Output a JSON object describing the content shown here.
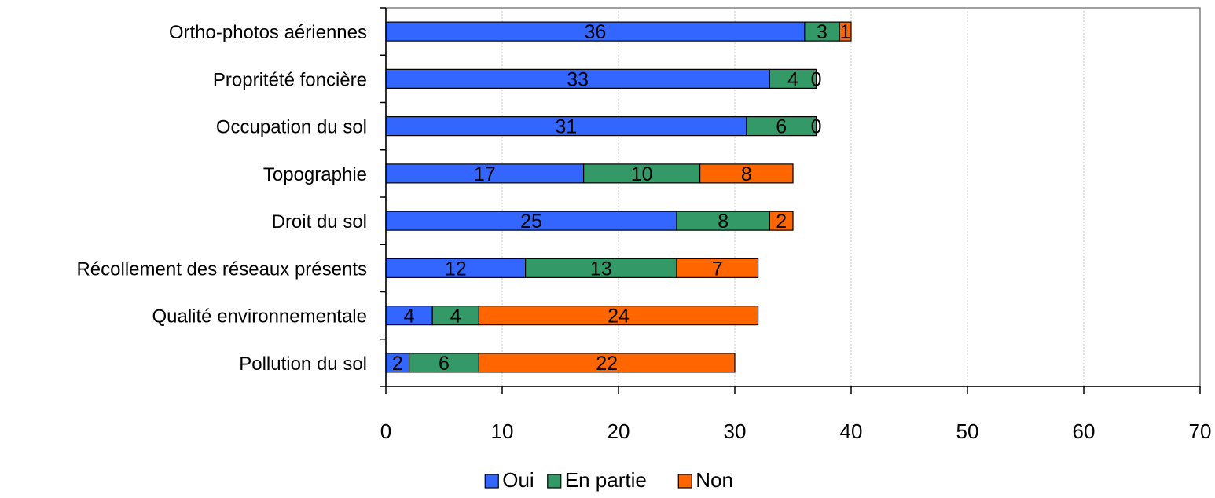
{
  "chart_data": {
    "type": "bar",
    "orientation": "horizontal",
    "stacked": true,
    "title": "",
    "xlabel": "",
    "ylabel": "",
    "xlim": [
      0,
      70
    ],
    "xticks": [
      0,
      10,
      20,
      30,
      40,
      50,
      60,
      70
    ],
    "grid": "vertical",
    "legend_position": "bottom",
    "categories": [
      "Ortho-photos aériennes",
      "Propritété foncière",
      "Occupation du sol",
      "Topographie",
      "Droit du sol",
      "Récollement des réseaux présents",
      "Qualité environnementale",
      "Pollution du sol"
    ],
    "series": [
      {
        "name": "Oui",
        "color": "#3366FF",
        "values": [
          36,
          33,
          31,
          17,
          25,
          12,
          4,
          2
        ]
      },
      {
        "name": "En partie",
        "color": "#339966",
        "values": [
          3,
          4,
          6,
          10,
          8,
          13,
          4,
          6
        ]
      },
      {
        "name": "Non",
        "color": "#FF6600",
        "values": [
          1,
          0,
          0,
          8,
          2,
          7,
          24,
          22
        ]
      }
    ]
  }
}
